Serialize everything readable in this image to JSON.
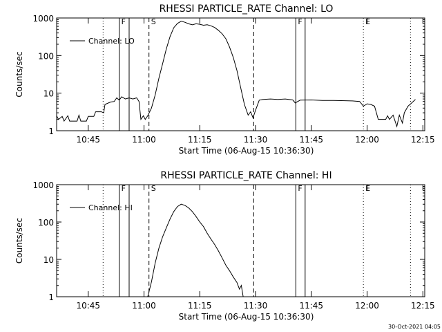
{
  "figure": {
    "timestamp": "30-Oct-2021 04:05"
  },
  "chart_data": [
    {
      "type": "line",
      "title": "RHESSI PARTICLE_RATE Channel: LO",
      "xlabel": "Start Time (06-Aug-15 10:36:30)",
      "ylabel": "Counts/sec",
      "yscale": "log",
      "xlim_minutes_after_start": [
        0,
        99
      ],
      "ylim": [
        1,
        1000
      ],
      "xticks": [
        "10:45",
        "11:00",
        "11:15",
        "11:30",
        "11:45",
        "12:00",
        "12:15"
      ],
      "yticks": [
        "1",
        "10",
        "100",
        "1000"
      ],
      "legend": {
        "label": "Channel: LO",
        "position": "top-left"
      },
      "markers": [
        {
          "time": "10:49:00",
          "style": "dotted",
          "label": ""
        },
        {
          "time": "10:53:20",
          "style": "solid",
          "label": "F"
        },
        {
          "time": "10:56:00",
          "style": "solid",
          "label": ""
        },
        {
          "time": "11:01:20",
          "style": "dashed",
          "label": "S"
        },
        {
          "time": "11:29:30",
          "style": "dashed",
          "label": ""
        },
        {
          "time": "11:40:50",
          "style": "solid",
          "label": "F"
        },
        {
          "time": "11:43:20",
          "style": "solid",
          "label": ""
        },
        {
          "time": "11:59:00",
          "style": "dotted",
          "label": "E"
        },
        {
          "time": "12:11:40",
          "style": "dotted",
          "label": ""
        }
      ],
      "series": [
        {
          "points": [
            [
              "10:36:30",
              2.5
            ],
            [
              "10:37:00",
              2.0
            ],
            [
              "10:38:00",
              2.4
            ],
            [
              "10:38:30",
              1.8
            ],
            [
              "10:39:30",
              2.5
            ],
            [
              "10:40:00",
              1.8
            ],
            [
              "10:42:00",
              1.8
            ],
            [
              "10:42:30",
              2.6
            ],
            [
              "10:43:00",
              1.8
            ],
            [
              "10:44:30",
              1.8
            ],
            [
              "10:45:00",
              2.4
            ],
            [
              "10:46:30",
              2.4
            ],
            [
              "10:47:00",
              3.2
            ],
            [
              "10:48:30",
              3.2
            ],
            [
              "10:49:10",
              3.0
            ],
            [
              "10:49:30",
              5.0
            ],
            [
              "10:51:00",
              5.8
            ],
            [
              "10:52:00",
              6.0
            ],
            [
              "10:52:40",
              7.5
            ],
            [
              "10:53:20",
              6.5
            ],
            [
              "10:54:00",
              8.0
            ],
            [
              "10:55:00",
              7.0
            ],
            [
              "10:56:00",
              7.5
            ],
            [
              "10:57:00",
              7.0
            ],
            [
              "10:58:00",
              7.5
            ],
            [
              "10:58:40",
              6.0
            ],
            [
              "10:59:10",
              2.0
            ],
            [
              "10:59:50",
              2.5
            ],
            [
              "11:00:20",
              2.0
            ],
            [
              "11:01:00",
              2.5
            ],
            [
              "11:02:00",
              4.0
            ],
            [
              "11:03:00",
              9.0
            ],
            [
              "11:04:00",
              25
            ],
            [
              "11:05:00",
              60
            ],
            [
              "11:06:00",
              150
            ],
            [
              "11:07:00",
              320
            ],
            [
              "11:08:00",
              550
            ],
            [
              "11:09:00",
              720
            ],
            [
              "11:10:00",
              820
            ],
            [
              "11:11:00",
              770
            ],
            [
              "11:12:00",
              700
            ],
            [
              "11:13:00",
              660
            ],
            [
              "11:14:00",
              700
            ],
            [
              "11:15:00",
              680
            ],
            [
              "11:16:00",
              640
            ],
            [
              "11:17:00",
              660
            ],
            [
              "11:18:00",
              620
            ],
            [
              "11:19:00",
              560
            ],
            [
              "11:20:00",
              470
            ],
            [
              "11:21:00",
              380
            ],
            [
              "11:22:00",
              280
            ],
            [
              "11:23:00",
              170
            ],
            [
              "11:24:00",
              90
            ],
            [
              "11:25:00",
              40
            ],
            [
              "11:26:00",
              14
            ],
            [
              "11:27:00",
              5
            ],
            [
              "11:28:00",
              2.6
            ],
            [
              "11:28:40",
              3.2
            ],
            [
              "11:29:20",
              2.2
            ],
            [
              "11:30:00",
              3.5
            ],
            [
              "11:31:00",
              6.5
            ],
            [
              "11:32:00",
              6.8
            ],
            [
              "11:34:00",
              7.0
            ],
            [
              "11:36:00",
              6.8
            ],
            [
              "11:38:00",
              7.0
            ],
            [
              "11:40:00",
              6.6
            ],
            [
              "11:40:40",
              5.5
            ],
            [
              "11:42:00",
              6.5
            ],
            [
              "11:45:00",
              6.6
            ],
            [
              "11:48:00",
              6.4
            ],
            [
              "11:51:00",
              6.4
            ],
            [
              "11:54:00",
              6.3
            ],
            [
              "11:56:00",
              6.2
            ],
            [
              "11:58:00",
              6.0
            ],
            [
              "11:59:00",
              4.5
            ],
            [
              "12:00:00",
              5.2
            ],
            [
              "12:01:00",
              5.0
            ],
            [
              "12:02:00",
              4.5
            ],
            [
              "12:03:00",
              2.0
            ],
            [
              "12:05:00",
              2.0
            ],
            [
              "12:05:30",
              2.5
            ],
            [
              "12:06:00",
              2.0
            ],
            [
              "12:07:00",
              2.6
            ],
            [
              "12:08:00",
              1.3
            ],
            [
              "12:08:40",
              2.6
            ],
            [
              "12:09:30",
              1.6
            ],
            [
              "12:10:00",
              3.0
            ],
            [
              "12:11:00",
              4.5
            ],
            [
              "12:12:00",
              5.5
            ],
            [
              "12:13:00",
              6.8
            ]
          ]
        }
      ]
    },
    {
      "type": "line",
      "title": "RHESSI PARTICLE_RATE Channel: HI",
      "xlabel": "Start Time (06-Aug-15 10:36:30)",
      "ylabel": "Counts/sec",
      "yscale": "log",
      "xlim_minutes_after_start": [
        0,
        99
      ],
      "ylim": [
        1,
        1000
      ],
      "xticks": [
        "10:45",
        "11:00",
        "11:15",
        "11:30",
        "11:45",
        "12:00",
        "12:15"
      ],
      "yticks": [
        "1",
        "10",
        "100",
        "1000"
      ],
      "legend": {
        "label": "Channel: HI",
        "position": "top-left"
      },
      "markers": [
        {
          "time": "10:49:00",
          "style": "dotted",
          "label": ""
        },
        {
          "time": "10:53:20",
          "style": "solid",
          "label": "F"
        },
        {
          "time": "10:56:00",
          "style": "solid",
          "label": ""
        },
        {
          "time": "11:01:20",
          "style": "dashed",
          "label": "S"
        },
        {
          "time": "11:29:30",
          "style": "dashed",
          "label": ""
        },
        {
          "time": "11:40:50",
          "style": "solid",
          "label": "F"
        },
        {
          "time": "11:43:20",
          "style": "solid",
          "label": ""
        },
        {
          "time": "11:59:00",
          "style": "dotted",
          "label": "E"
        },
        {
          "time": "12:11:40",
          "style": "dotted",
          "label": ""
        }
      ],
      "series": [
        {
          "points": [
            [
              "11:01:00",
              1.0
            ],
            [
              "11:02:00",
              2.5
            ],
            [
              "11:03:00",
              8
            ],
            [
              "11:04:00",
              20
            ],
            [
              "11:05:00",
              40
            ],
            [
              "11:06:00",
              70
            ],
            [
              "11:07:00",
              120
            ],
            [
              "11:08:00",
              190
            ],
            [
              "11:09:00",
              260
            ],
            [
              "11:10:00",
              300
            ],
            [
              "11:11:00",
              280
            ],
            [
              "11:12:00",
              240
            ],
            [
              "11:13:00",
              190
            ],
            [
              "11:14:00",
              140
            ],
            [
              "11:15:00",
              100
            ],
            [
              "11:16:00",
              75
            ],
            [
              "11:17:00",
              50
            ],
            [
              "11:18:00",
              35
            ],
            [
              "11:19:00",
              25
            ],
            [
              "11:20:00",
              17
            ],
            [
              "11:21:00",
              11
            ],
            [
              "11:22:00",
              7
            ],
            [
              "11:23:00",
              5
            ],
            [
              "11:24:00",
              3.4
            ],
            [
              "11:25:00",
              2.4
            ],
            [
              "11:25:40",
              1.6
            ],
            [
              "11:26:10",
              2.0
            ],
            [
              "11:26:40",
              1.0
            ]
          ]
        }
      ]
    }
  ]
}
